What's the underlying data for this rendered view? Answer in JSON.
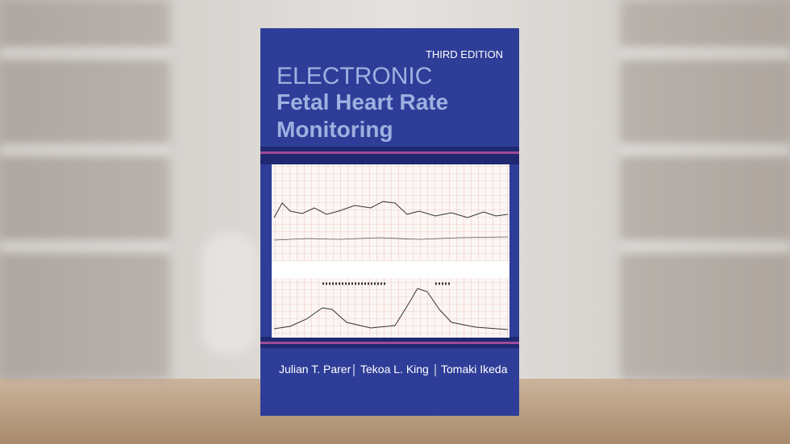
{
  "book": {
    "edition": "THIRD EDITION",
    "title": [
      "ELECTRONIC",
      "Fetal Heart Rate",
      "Monitoring"
    ],
    "authors": [
      "Julian T. Parer",
      "Tekoa L. King",
      "Tomaki Ikeda"
    ]
  }
}
